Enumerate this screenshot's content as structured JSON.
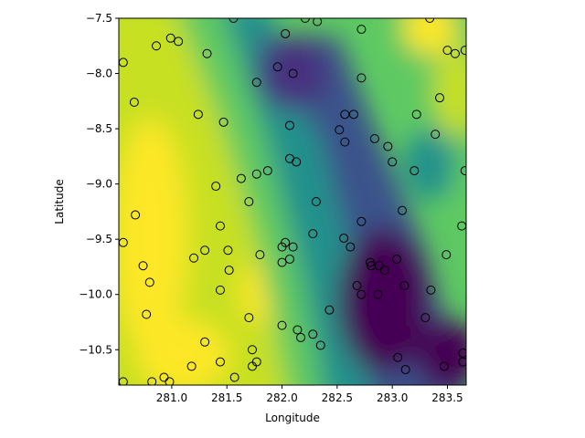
{
  "chart_data": {
    "type": "scatter",
    "title": "",
    "xlabel": "Longitude",
    "ylabel": "Latitude",
    "xlim": [
      280.52,
      283.67
    ],
    "ylim": [
      -10.82,
      -7.5
    ],
    "xticks": [
      281.0,
      281.5,
      282.0,
      282.5,
      283.0,
      283.5
    ],
    "xtick_labels": [
      "281.0",
      "281.5",
      "282.0",
      "282.5",
      "283.0",
      "283.5"
    ],
    "yticks": [
      -7.5,
      -8.0,
      -8.5,
      -9.0,
      -9.5,
      -10.0,
      -10.5
    ],
    "ytick_labels": [
      "−7.5",
      "−8.0",
      "−8.5",
      "−9.0",
      "−9.5",
      "−10.0",
      "−10.5"
    ],
    "background": "filled contour field, viridis colormap",
    "colormap": [
      "#440154",
      "#3b528b",
      "#21918c",
      "#5ec962",
      "#fde725"
    ],
    "marker": "open circle",
    "marker_color": "#000000",
    "grid": false,
    "series": [
      {
        "points": [
          [
            280.56,
            -7.9
          ],
          [
            280.86,
            -7.75
          ],
          [
            280.66,
            -8.26
          ],
          [
            280.99,
            -7.68
          ],
          [
            281.06,
            -7.71
          ],
          [
            281.32,
            -7.82
          ],
          [
            281.56,
            -7.5
          ],
          [
            281.77,
            -8.08
          ],
          [
            281.96,
            -7.94
          ],
          [
            282.03,
            -7.64
          ],
          [
            282.1,
            -8.0
          ],
          [
            282.21,
            -7.5
          ],
          [
            282.32,
            -7.53
          ],
          [
            282.72,
            -7.6
          ],
          [
            283.34,
            -7.5
          ],
          [
            283.5,
            -7.79
          ],
          [
            283.57,
            -7.82
          ],
          [
            283.66,
            -7.79
          ],
          [
            282.72,
            -8.04
          ],
          [
            283.43,
            -8.22
          ],
          [
            281.24,
            -8.37
          ],
          [
            281.47,
            -8.44
          ],
          [
            282.07,
            -8.47
          ],
          [
            282.52,
            -8.51
          ],
          [
            282.57,
            -8.37
          ],
          [
            282.65,
            -8.37
          ],
          [
            282.57,
            -8.62
          ],
          [
            282.84,
            -8.59
          ],
          [
            282.96,
            -8.66
          ],
          [
            283.22,
            -8.37
          ],
          [
            283.39,
            -8.55
          ],
          [
            282.07,
            -8.77
          ],
          [
            282.13,
            -8.8
          ],
          [
            283.0,
            -8.8
          ],
          [
            283.2,
            -8.88
          ],
          [
            283.66,
            -8.88
          ],
          [
            281.63,
            -8.95
          ],
          [
            281.77,
            -8.91
          ],
          [
            281.87,
            -8.88
          ],
          [
            281.4,
            -9.02
          ],
          [
            281.7,
            -9.16
          ],
          [
            282.31,
            -9.16
          ],
          [
            283.09,
            -9.24
          ],
          [
            280.67,
            -9.28
          ],
          [
            281.44,
            -9.38
          ],
          [
            282.72,
            -9.34
          ],
          [
            283.63,
            -9.38
          ],
          [
            282.28,
            -9.45
          ],
          [
            280.56,
            -9.53
          ],
          [
            282.0,
            -9.57
          ],
          [
            282.03,
            -9.53
          ],
          [
            282.1,
            -9.57
          ],
          [
            282.56,
            -9.49
          ],
          [
            282.62,
            -9.57
          ],
          [
            281.3,
            -9.6
          ],
          [
            281.51,
            -9.6
          ],
          [
            281.8,
            -9.64
          ],
          [
            283.49,
            -9.64
          ],
          [
            281.2,
            -9.67
          ],
          [
            282.07,
            -9.68
          ],
          [
            283.04,
            -9.68
          ],
          [
            280.74,
            -9.74
          ],
          [
            282.0,
            -9.71
          ],
          [
            282.8,
            -9.71
          ],
          [
            282.81,
            -9.74
          ],
          [
            282.88,
            -9.74
          ],
          [
            282.93,
            -9.78
          ],
          [
            281.52,
            -9.78
          ],
          [
            280.8,
            -9.89
          ],
          [
            282.68,
            -9.92
          ],
          [
            283.11,
            -9.92
          ],
          [
            281.44,
            -9.96
          ],
          [
            282.72,
            -10.0
          ],
          [
            282.87,
            -10.0
          ],
          [
            283.35,
            -9.96
          ],
          [
            282.43,
            -10.14
          ],
          [
            280.77,
            -10.18
          ],
          [
            281.7,
            -10.21
          ],
          [
            283.3,
            -10.21
          ],
          [
            282.0,
            -10.28
          ],
          [
            282.14,
            -10.32
          ],
          [
            282.28,
            -10.36
          ],
          [
            282.17,
            -10.39
          ],
          [
            281.3,
            -10.43
          ],
          [
            282.35,
            -10.46
          ],
          [
            281.73,
            -10.5
          ],
          [
            283.05,
            -10.57
          ],
          [
            283.64,
            -10.53
          ],
          [
            281.44,
            -10.61
          ],
          [
            281.77,
            -10.61
          ],
          [
            281.73,
            -10.65
          ],
          [
            281.18,
            -10.65
          ],
          [
            283.12,
            -10.68
          ],
          [
            283.47,
            -10.65
          ],
          [
            283.64,
            -10.61
          ],
          [
            281.57,
            -10.75
          ],
          [
            280.93,
            -10.75
          ],
          [
            280.98,
            -10.79
          ],
          [
            280.82,
            -10.79
          ],
          [
            280.56,
            -10.79
          ]
        ]
      }
    ]
  }
}
